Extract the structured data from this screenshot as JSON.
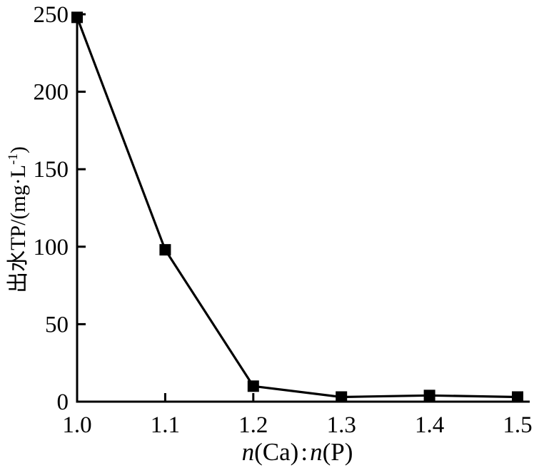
{
  "chart_data": {
    "type": "line",
    "title": "",
    "x": [
      1.0,
      1.1,
      1.2,
      1.3,
      1.4,
      1.5
    ],
    "values": [
      248,
      98,
      10,
      3,
      4,
      3
    ],
    "series": [
      {
        "name": "出水TP",
        "values": [
          248,
          98,
          10,
          3,
          4,
          3
        ]
      }
    ],
    "xlabel": "n(Ca):n(P)",
    "ylabel": "出水TP/(mg·L⁻¹)",
    "xlim": [
      1.0,
      1.5
    ],
    "ylim": [
      0,
      250
    ],
    "xticks": [
      {
        "value": 1.0,
        "label": "1.0"
      },
      {
        "value": 1.1,
        "label": "1.1"
      },
      {
        "value": 1.2,
        "label": "1.2"
      },
      {
        "value": 1.3,
        "label": "1.3"
      },
      {
        "value": 1.4,
        "label": "1.4"
      },
      {
        "value": 1.5,
        "label": "1.5"
      }
    ],
    "yticks": [
      {
        "value": 0,
        "label": "0"
      },
      {
        "value": 50,
        "label": "50"
      },
      {
        "value": 100,
        "label": "100"
      },
      {
        "value": 150,
        "label": "150"
      },
      {
        "value": 200,
        "label": "200"
      },
      {
        "value": 250,
        "label": "250"
      }
    ],
    "marker": "filled-square",
    "line_color": "#000000",
    "marker_color": "#000000",
    "axis_color": "#000000",
    "background": "#ffffff",
    "grid": false,
    "legend": "none"
  },
  "ylabel_parts": {
    "main": "出水TP/(mg·L",
    "superscript": "-1",
    "close": ")"
  },
  "xlabel_parts": [
    {
      "text": "n",
      "italic": true
    },
    {
      "text": "(Ca)",
      "italic": false
    },
    {
      "text": ":",
      "italic": false
    },
    {
      "text": "n",
      "italic": true
    },
    {
      "text": "(P)",
      "italic": false
    }
  ]
}
